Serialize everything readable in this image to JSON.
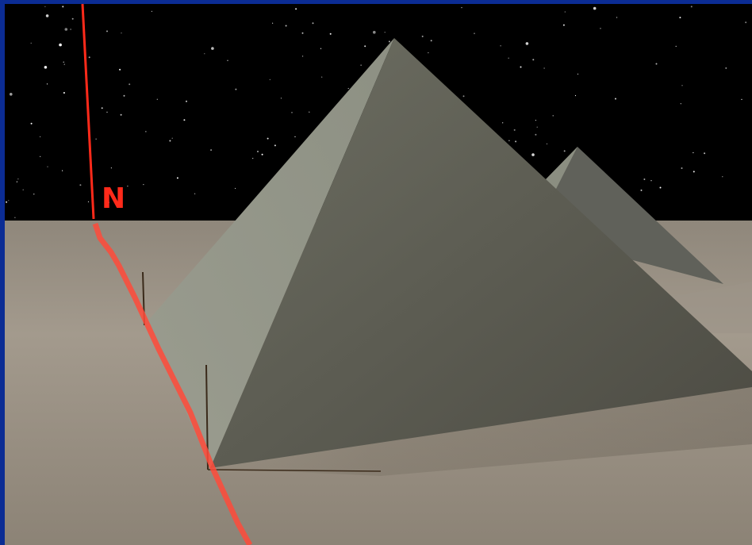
{
  "scene": {
    "north_label": "N",
    "colors": {
      "border": "#0b2c94",
      "sky": "#000000",
      "ground": "#a0968a",
      "pyramid_lit": "#8f9284",
      "pyramid_shade": "#5e5f55",
      "meridian_line": "#ff3a2a"
    }
  }
}
